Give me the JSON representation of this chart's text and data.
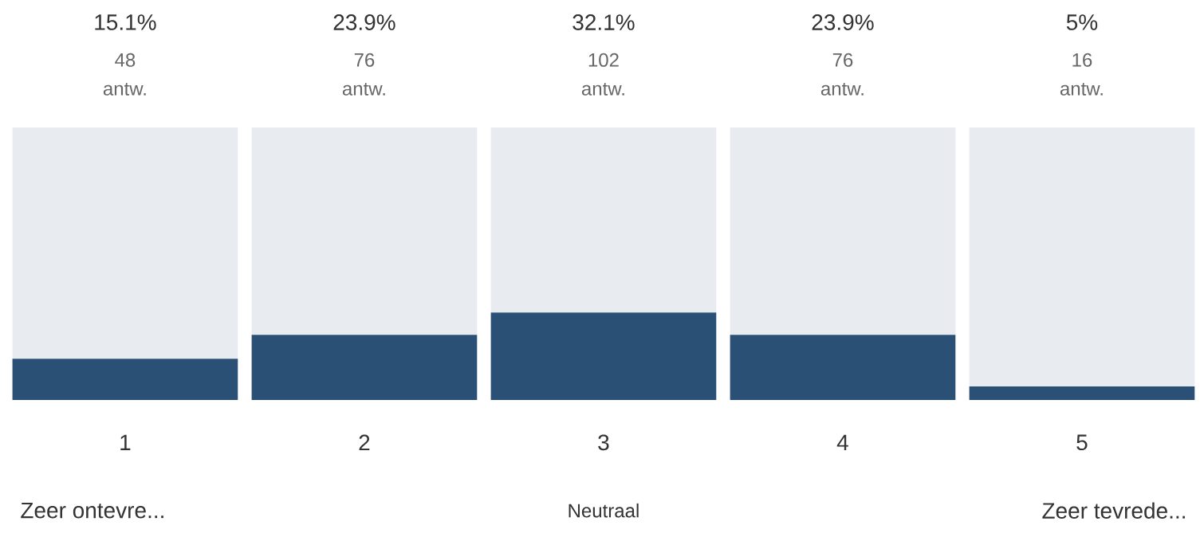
{
  "chart_data": {
    "type": "bar",
    "stacked": true,
    "categories": [
      "1",
      "2",
      "3",
      "4",
      "5"
    ],
    "series": [
      {
        "color": "#2b5075",
        "values": [
          15.1,
          23.9,
          32.1,
          23.9,
          5
        ],
        "value_labels": [
          "15.1%",
          "23.9%",
          "32.1%",
          "23.9%",
          "5%"
        ]
      },
      {
        "color": "#e8ebef",
        "values": [
          84.9,
          76.1,
          67.9,
          76.1,
          95
        ]
      }
    ],
    "ylim": [
      0,
      100
    ],
    "annotations": [
      "48 antw.",
      "76 antw.",
      "102 antw.",
      "76 antw.",
      "16 antw.",
      "Zeer ontevre...",
      "Neutraal",
      "Zeer tevrede..."
    ]
  }
}
